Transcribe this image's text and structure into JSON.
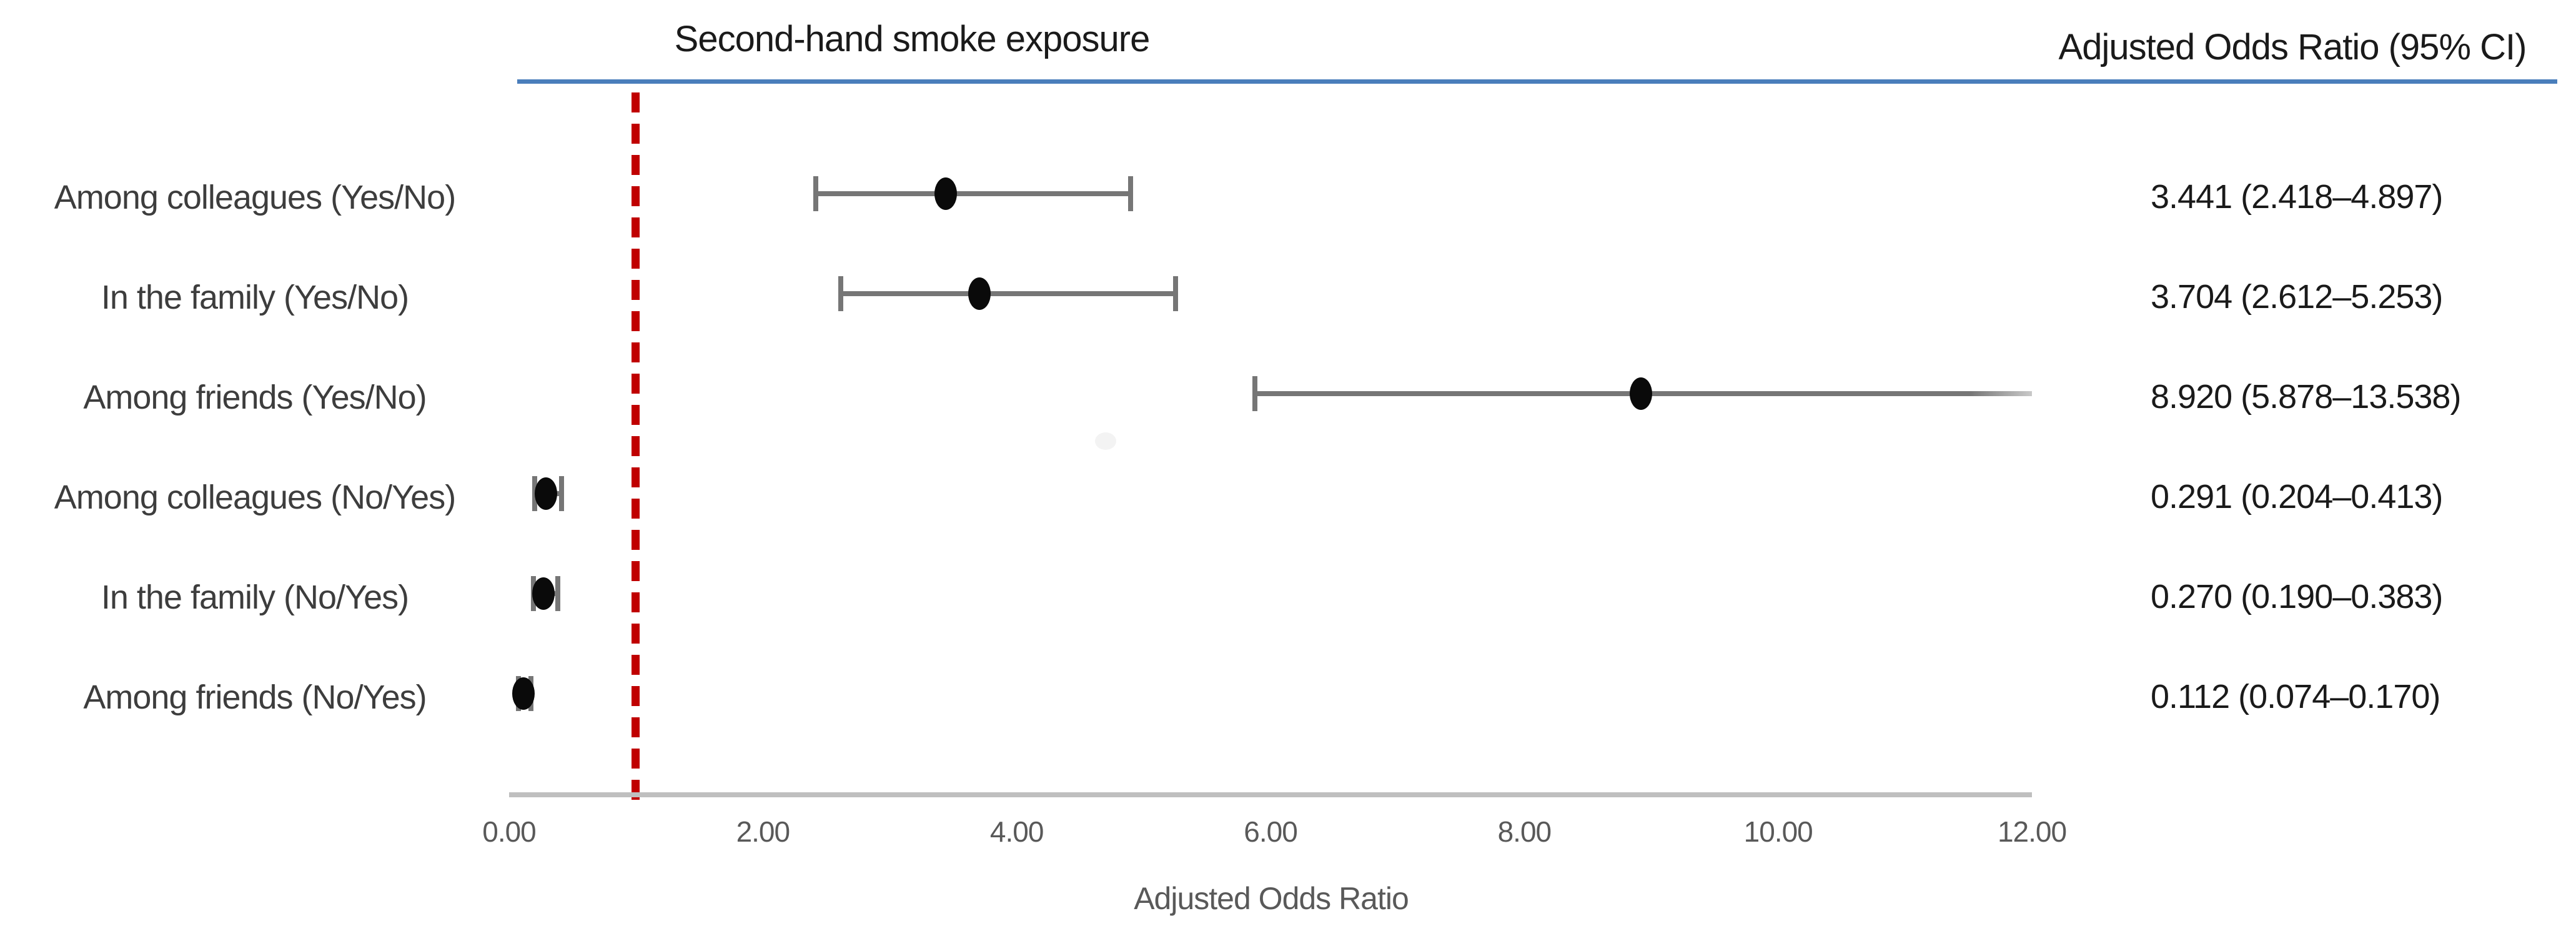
{
  "chart_data": {
    "type": "scatter",
    "subtype": "forest-plot",
    "title": "Second-hand smoke exposure",
    "value_column_header": "Adjusted Odds Ratio (95% CI)",
    "xlabel": "Adjusted Odds Ratio",
    "xlim": [
      0,
      12
    ],
    "x_ticks": [
      {
        "value": 0,
        "label": "0.00"
      },
      {
        "value": 2,
        "label": "2.00"
      },
      {
        "value": 4,
        "label": "4.00"
      },
      {
        "value": 6,
        "label": "6.00"
      },
      {
        "value": 8,
        "label": "8.00"
      },
      {
        "value": 10,
        "label": "10.00"
      },
      {
        "value": 12,
        "label": "12.00"
      }
    ],
    "reference_line_value": 1.0,
    "grid": false,
    "legend": "none",
    "rows": [
      {
        "label": "Among colleagues (Yes/No)",
        "or": 3.441,
        "ci_low": 2.418,
        "ci_high": 4.897,
        "display": "3.441 (2.418–4.897)"
      },
      {
        "label": "In the family (Yes/No)",
        "or": 3.704,
        "ci_low": 2.612,
        "ci_high": 5.253,
        "display": "3.704 (2.612–5.253)"
      },
      {
        "label": "Among friends (Yes/No)",
        "or": 8.92,
        "ci_low": 5.878,
        "ci_high": 13.538,
        "display": "8.920 (5.878–13.538)"
      },
      {
        "label": "Among colleagues (No/Yes)",
        "or": 0.291,
        "ci_low": 0.204,
        "ci_high": 0.413,
        "display": "0.291 (0.204–0.413)"
      },
      {
        "label": "In the family (No/Yes)",
        "or": 0.27,
        "ci_low": 0.19,
        "ci_high": 0.383,
        "display": "0.270 (0.190–0.383)"
      },
      {
        "label": "Among friends (No/Yes)",
        "or": 0.112,
        "ci_low": 0.074,
        "ci_high": 0.17,
        "display": "0.112 (0.074–0.170)"
      }
    ]
  },
  "colors": {
    "reference_line": "#c00000",
    "header_divider": "#4a7ebb",
    "axis_line": "#bfbfbf",
    "error_bar": "#767676",
    "marker": "#0a0a0a",
    "tick_text": "#595959",
    "label_text": "#3d3d3d",
    "value_text": "#1a1a1a"
  }
}
